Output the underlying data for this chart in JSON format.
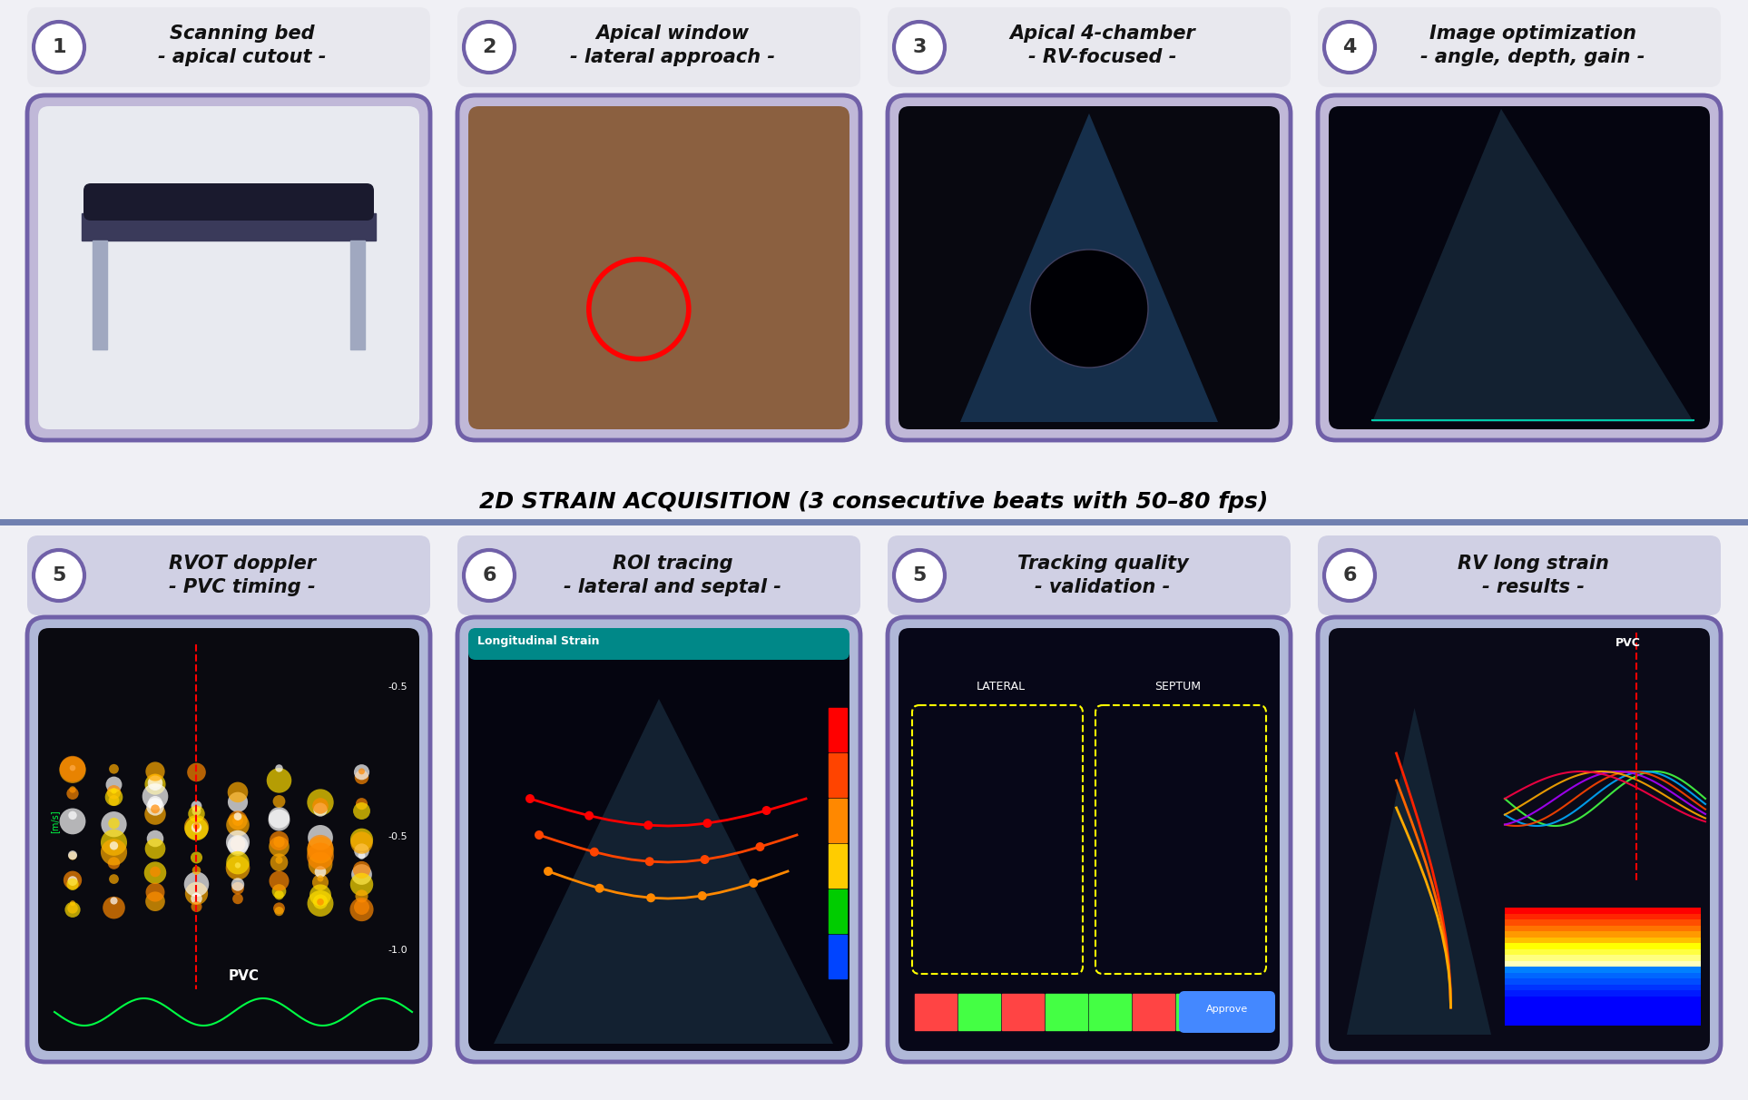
{
  "fig_width": 19.26,
  "fig_height": 12.12,
  "dpi": 100,
  "top_bg_color": "#f0f0f5",
  "bottom_bg_color": "#c8d0e8",
  "divider_color": "#7080b0",
  "top_row": {
    "numbers": [
      "1",
      "2",
      "3",
      "4"
    ],
    "titles": [
      "Scanning bed\n- apical cutout -",
      "Apical window\n- lateral approach -",
      "Apical 4-chamber\n- RV-focused -",
      "Image optimization\n- angle, depth, gain -"
    ],
    "box_color": "#e8e0f0",
    "border_color": "#7060a8",
    "num_circle_color": "#7060a8",
    "text_color": "#000000"
  },
  "middle_text": "2D STRAIN ACQUISITION (3 consecutive beats with 50–80 fps)",
  "middle_text_color": "#000000",
  "bottom_row": {
    "numbers": [
      "5",
      "6",
      "5",
      "6"
    ],
    "titles": [
      "RVOT doppler\n- PVC timing -",
      "ROI tracing\n- lateral and septal -",
      "Tracking quality\n- validation -",
      "RV long strain\n- results -"
    ],
    "box_color": "#dce4f4",
    "border_color": "#7060a8",
    "num_circle_color": "#7060a8",
    "text_color": "#000000"
  }
}
